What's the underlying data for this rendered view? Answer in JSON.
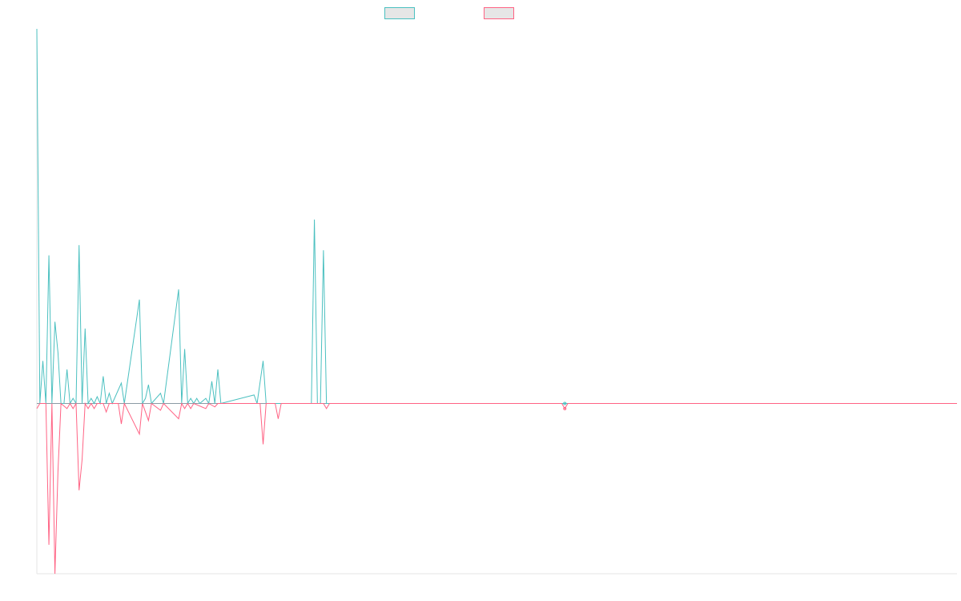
{
  "chart_data": {
    "type": "line",
    "title": "",
    "xlabel": "",
    "ylabel": "",
    "grid": false,
    "legend_placement": "top-center",
    "ylim": [
      -10,
      22
    ],
    "series": [
      {
        "color": "#4bc0c0",
        "values": [
          {
            "x": 0,
            "y": 22
          },
          {
            "x": 1,
            "y": 0
          },
          {
            "x": 2,
            "y": 2.5
          },
          {
            "x": 3,
            "y": 0
          },
          {
            "x": 4,
            "y": 8.7
          },
          {
            "x": 5,
            "y": 0
          },
          {
            "x": 6,
            "y": 4.8
          },
          {
            "x": 7,
            "y": 3
          },
          {
            "x": 8,
            "y": 0
          },
          {
            "x": 9,
            "y": 0
          },
          {
            "x": 10,
            "y": 2
          },
          {
            "x": 11,
            "y": 0
          },
          {
            "x": 12,
            "y": 0.3
          },
          {
            "x": 13,
            "y": 0
          },
          {
            "x": 14,
            "y": 9.3
          },
          {
            "x": 15,
            "y": 0
          },
          {
            "x": 16,
            "y": 4.4
          },
          {
            "x": 17,
            "y": 0
          },
          {
            "x": 18,
            "y": 0.3
          },
          {
            "x": 19,
            "y": 0
          },
          {
            "x": 20,
            "y": 0.4
          },
          {
            "x": 21,
            "y": 0
          },
          {
            "x": 22,
            "y": 1.6
          },
          {
            "x": 23,
            "y": 0
          },
          {
            "x": 24,
            "y": 0.6
          },
          {
            "x": 25,
            "y": 0
          },
          {
            "x": 28,
            "y": 1.2
          },
          {
            "x": 29,
            "y": 0
          },
          {
            "x": 34,
            "y": 6.1
          },
          {
            "x": 35,
            "y": 0
          },
          {
            "x": 36,
            "y": 0.3
          },
          {
            "x": 37,
            "y": 1.1
          },
          {
            "x": 38,
            "y": 0
          },
          {
            "x": 41,
            "y": 0.6
          },
          {
            "x": 42,
            "y": 0
          },
          {
            "x": 47,
            "y": 6.7
          },
          {
            "x": 48,
            "y": 0
          },
          {
            "x": 49,
            "y": 3.2
          },
          {
            "x": 50,
            "y": 0
          },
          {
            "x": 51,
            "y": 0.3
          },
          {
            "x": 52,
            "y": 0
          },
          {
            "x": 53,
            "y": 0.3
          },
          {
            "x": 54,
            "y": 0
          },
          {
            "x": 56,
            "y": 0.3
          },
          {
            "x": 57,
            "y": 0
          },
          {
            "x": 58,
            "y": 1.3
          },
          {
            "x": 59,
            "y": 0
          },
          {
            "x": 60,
            "y": 2
          },
          {
            "x": 61,
            "y": 0
          },
          {
            "x": 72,
            "y": 0.5
          },
          {
            "x": 73,
            "y": 0
          },
          {
            "x": 75,
            "y": 2.5
          },
          {
            "x": 76,
            "y": 0
          },
          {
            "x": 77,
            "y": 0
          },
          {
            "x": 79,
            "y": 0
          },
          {
            "x": 91,
            "y": 0
          },
          {
            "x": 92,
            "y": 10.8
          },
          {
            "x": 93,
            "y": 0
          },
          {
            "x": 94,
            "y": 0
          },
          {
            "x": 95,
            "y": 9
          },
          {
            "x": 96,
            "y": 0
          },
          {
            "x": 174,
            "y": 0
          },
          {
            "x": 175,
            "y": 0
          },
          {
            "x": 176,
            "y": 0
          },
          {
            "x": 305,
            "y": 0
          }
        ]
      },
      {
        "color": "#ff6384",
        "values": [
          {
            "x": 0,
            "y": -0.3
          },
          {
            "x": 1,
            "y": 0
          },
          {
            "x": 3,
            "y": 0
          },
          {
            "x": 4,
            "y": -8.3
          },
          {
            "x": 5,
            "y": 0
          },
          {
            "x": 6,
            "y": -10
          },
          {
            "x": 7,
            "y": -4
          },
          {
            "x": 8,
            "y": 0
          },
          {
            "x": 10,
            "y": -0.3
          },
          {
            "x": 11,
            "y": 0
          },
          {
            "x": 12,
            "y": -0.3
          },
          {
            "x": 13,
            "y": 0
          },
          {
            "x": 14,
            "y": -5.1
          },
          {
            "x": 15,
            "y": -3.3
          },
          {
            "x": 16,
            "y": 0
          },
          {
            "x": 17,
            "y": -0.3
          },
          {
            "x": 18,
            "y": 0
          },
          {
            "x": 19,
            "y": -0.3
          },
          {
            "x": 20,
            "y": 0
          },
          {
            "x": 22,
            "y": 0
          },
          {
            "x": 23,
            "y": -0.5
          },
          {
            "x": 24,
            "y": 0
          },
          {
            "x": 27,
            "y": 0
          },
          {
            "x": 28,
            "y": -1.2
          },
          {
            "x": 29,
            "y": 0
          },
          {
            "x": 34,
            "y": -1.8
          },
          {
            "x": 35,
            "y": 0
          },
          {
            "x": 37,
            "y": -1
          },
          {
            "x": 38,
            "y": 0
          },
          {
            "x": 41,
            "y": -0.4
          },
          {
            "x": 42,
            "y": 0
          },
          {
            "x": 47,
            "y": -0.9
          },
          {
            "x": 48,
            "y": 0
          },
          {
            "x": 49,
            "y": -0.3
          },
          {
            "x": 50,
            "y": 0
          },
          {
            "x": 51,
            "y": -0.3
          },
          {
            "x": 52,
            "y": 0
          },
          {
            "x": 56,
            "y": -0.3
          },
          {
            "x": 57,
            "y": 0
          },
          {
            "x": 59,
            "y": -0.2
          },
          {
            "x": 60,
            "y": 0
          },
          {
            "x": 74,
            "y": 0
          },
          {
            "x": 75,
            "y": -2.4
          },
          {
            "x": 76,
            "y": 0
          },
          {
            "x": 79,
            "y": 0
          },
          {
            "x": 80,
            "y": -0.9
          },
          {
            "x": 81,
            "y": 0
          },
          {
            "x": 95,
            "y": 0
          },
          {
            "x": 96,
            "y": -0.3
          },
          {
            "x": 97,
            "y": 0
          },
          {
            "x": 174,
            "y": 0
          },
          {
            "x": 175,
            "y": -0.3
          },
          {
            "x": 176,
            "y": 0
          },
          {
            "x": 305,
            "y": 0
          }
        ]
      }
    ]
  }
}
